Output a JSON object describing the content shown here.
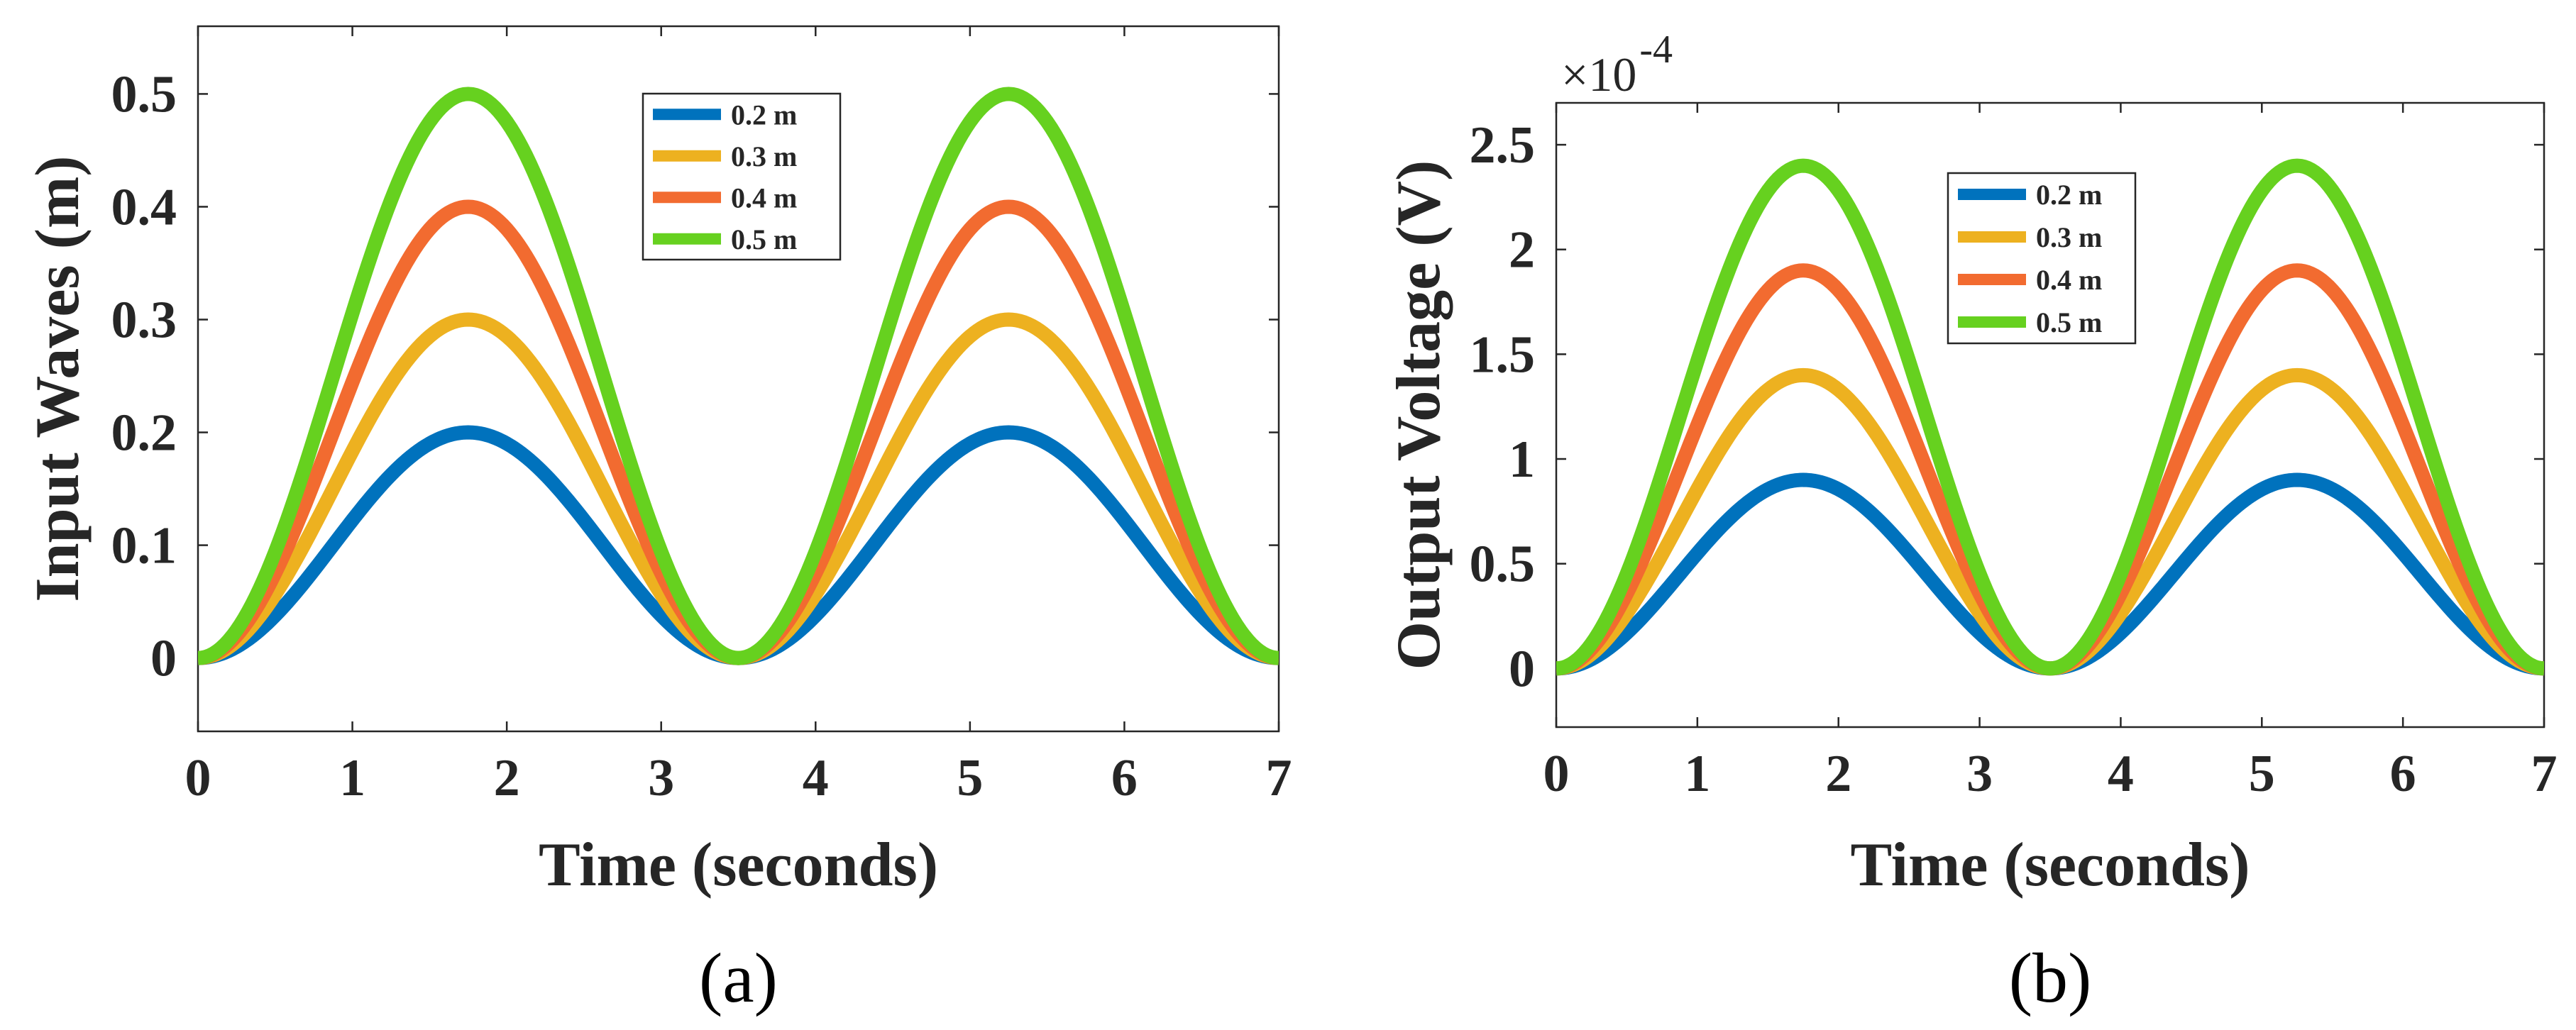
{
  "chart_data": [
    {
      "id": "a",
      "type": "line",
      "caption": "(a)",
      "xlabel": "Time (seconds)",
      "ylabel": "Input Waves (m)",
      "xlim": [
        0,
        7
      ],
      "ylim": [
        -0.065,
        0.56
      ],
      "xticks": [
        0,
        1,
        2,
        3,
        4,
        5,
        6,
        7
      ],
      "xtick_labels": [
        "0",
        "1",
        "2",
        "3",
        "4",
        "5",
        "6",
        "7"
      ],
      "yticks": [
        0,
        0.1,
        0.2,
        0.3,
        0.4,
        0.5
      ],
      "ytick_labels": [
        "0",
        "0.1",
        "0.2",
        "0.3",
        "0.4",
        "0.5"
      ],
      "legend_position": "top-center",
      "function": "y = amplitude * sin^2(pi * t / 3.5)",
      "x_sample": [
        0,
        0.5,
        1.0,
        1.5,
        1.75,
        2.0,
        2.5,
        3.0,
        3.5,
        4.0,
        4.5,
        5.0,
        5.25,
        5.5,
        6.0,
        6.5,
        7.0
      ],
      "series": [
        {
          "name": "0.2 m",
          "color": "#0072BD",
          "amplitude": 0.2,
          "values": [
            0,
            0.038,
            0.125,
            0.195,
            0.2,
            0.195,
            0.125,
            0.038,
            0,
            0.038,
            0.125,
            0.195,
            0.2,
            0.195,
            0.125,
            0.038,
            0
          ]
        },
        {
          "name": "0.3 m",
          "color": "#EDB120",
          "amplitude": 0.3,
          "values": [
            0,
            0.057,
            0.188,
            0.293,
            0.3,
            0.293,
            0.188,
            0.057,
            0,
            0.057,
            0.188,
            0.293,
            0.3,
            0.293,
            0.188,
            0.057,
            0
          ]
        },
        {
          "name": "0.4 m",
          "color": "#F26B30",
          "amplitude": 0.4,
          "values": [
            0,
            0.076,
            0.251,
            0.39,
            0.4,
            0.39,
            0.251,
            0.076,
            0,
            0.076,
            0.251,
            0.39,
            0.4,
            0.39,
            0.251,
            0.076,
            0
          ]
        },
        {
          "name": "0.5 m",
          "color": "#66D11F",
          "amplitude": 0.5,
          "values": [
            0,
            0.094,
            0.313,
            0.488,
            0.5,
            0.488,
            0.313,
            0.094,
            0,
            0.094,
            0.313,
            0.488,
            0.5,
            0.488,
            0.313,
            0.094,
            0
          ]
        }
      ]
    },
    {
      "id": "b",
      "type": "line",
      "caption": "(b)",
      "xlabel": "Time (seconds)",
      "ylabel": "Output Voltage (V)",
      "y_multiplier": "×10",
      "y_multiplier_exponent": "-4",
      "xlim": [
        0,
        7
      ],
      "ylim": [
        -0.28,
        2.7
      ],
      "xticks": [
        0,
        1,
        2,
        3,
        4,
        5,
        6,
        7
      ],
      "xtick_labels": [
        "0",
        "1",
        "2",
        "3",
        "4",
        "5",
        "6",
        "7"
      ],
      "yticks": [
        0,
        0.5,
        1,
        1.5,
        2,
        2.5
      ],
      "ytick_labels": [
        "0",
        "0.5",
        "1",
        "1.5",
        "2",
        "2.5"
      ],
      "legend_position": "top-center",
      "function": "y = amplitude * sin^2(pi * t / 3.5)",
      "x_sample": [
        0,
        0.5,
        1.0,
        1.5,
        1.75,
        2.0,
        2.5,
        3.0,
        3.5,
        4.0,
        4.5,
        5.0,
        5.25,
        5.5,
        6.0,
        6.5,
        7.0
      ],
      "series": [
        {
          "name": "0.2 m",
          "color": "#0072BD",
          "amplitude": 0.9,
          "values": [
            0,
            0.169,
            0.563,
            0.877,
            0.9,
            0.877,
            0.563,
            0.169,
            0,
            0.169,
            0.563,
            0.877,
            0.9,
            0.877,
            0.563,
            0.169,
            0
          ]
        },
        {
          "name": "0.3 m",
          "color": "#EDB120",
          "amplitude": 1.4,
          "values": [
            0,
            0.263,
            0.876,
            1.365,
            1.4,
            1.365,
            0.876,
            0.263,
            0,
            0.263,
            0.876,
            1.365,
            1.4,
            1.365,
            0.876,
            0.263,
            0
          ]
        },
        {
          "name": "0.4 m",
          "color": "#F26B30",
          "amplitude": 1.9,
          "values": [
            0,
            0.357,
            1.188,
            1.852,
            1.9,
            1.852,
            1.188,
            0.357,
            0,
            0.357,
            1.188,
            1.852,
            1.9,
            1.852,
            1.188,
            0.357,
            0
          ]
        },
        {
          "name": "0.5 m",
          "color": "#66D11F",
          "amplitude": 2.4,
          "values": [
            0,
            0.451,
            1.501,
            2.339,
            2.4,
            2.339,
            1.501,
            0.451,
            0,
            0.451,
            1.501,
            2.339,
            2.4,
            2.339,
            1.501,
            0.451,
            0
          ]
        }
      ]
    }
  ]
}
